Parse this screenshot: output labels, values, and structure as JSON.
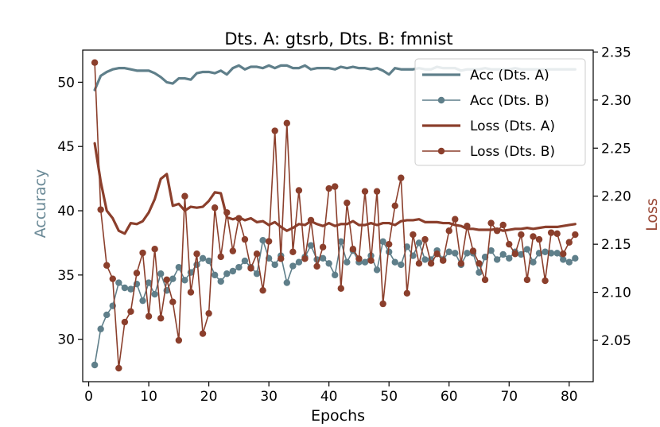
{
  "chart_data": {
    "type": "line",
    "title": "Dts. A: gtsrb, Dts. B: fmnist",
    "xlabel": "Epochs",
    "ylabel_left": "Accuracy",
    "ylabel_right": "Loss",
    "xlim": [
      -1,
      84
    ],
    "ylim_left": [
      26.7,
      52.5
    ],
    "ylim_right": [
      2.007,
      2.352
    ],
    "x_ticks": [
      0,
      10,
      20,
      30,
      40,
      50,
      60,
      70,
      80
    ],
    "y_left_ticks": [
      30,
      35,
      40,
      45,
      50
    ],
    "y_right_ticks": [
      2.05,
      2.1,
      2.15,
      2.2,
      2.25,
      2.3,
      2.35
    ],
    "y_right_tick_labels": [
      "2.05",
      "2.10",
      "2.15",
      "2.20",
      "2.25",
      "2.30",
      "2.35"
    ],
    "legend_position": "top-right",
    "colors": {
      "acc": "#5f7f8a",
      "loss": "#8b3f2c",
      "acc_label": "#6b8a97",
      "loss_label": "#9a4a38"
    },
    "series": [
      {
        "name": "Acc (Dts. A)",
        "axis": "left",
        "style": "line-thick",
        "values": [
          49.4,
          50.5,
          50.8,
          51.0,
          51.1,
          51.1,
          51.0,
          50.9,
          50.9,
          50.9,
          50.7,
          50.4,
          50.0,
          49.9,
          50.3,
          50.3,
          50.2,
          50.7,
          50.8,
          50.8,
          50.7,
          50.9,
          50.6,
          51.1,
          51.3,
          51.0,
          51.2,
          51.2,
          51.1,
          51.3,
          51.1,
          51.3,
          51.3,
          51.1,
          51.1,
          51.3,
          51.0,
          51.1,
          51.1,
          51.1,
          51.0,
          51.2,
          51.1,
          51.2,
          51.1,
          51.1,
          51.0,
          51.1,
          50.9,
          50.6,
          51.1,
          51.0,
          51.0,
          51.0,
          51.1,
          51.0,
          51.0,
          51.2,
          51.1,
          51.1,
          51.1,
          50.9,
          51.0,
          51.0,
          51.0,
          51.1,
          51.0,
          51.0,
          51.0,
          51.0,
          51.1,
          51.0,
          51.0,
          51.0,
          51.0,
          51.0,
          51.0,
          51.0,
          51.0,
          51.0,
          51.0
        ]
      },
      {
        "name": "Acc (Dts. B)",
        "axis": "left",
        "style": "line-marker",
        "values": [
          28.0,
          30.8,
          31.9,
          32.6,
          34.4,
          34.0,
          33.9,
          34.3,
          33.0,
          34.4,
          33.5,
          35.1,
          33.8,
          34.7,
          35.6,
          34.6,
          35.2,
          35.8,
          36.3,
          36.1,
          35.0,
          34.5,
          35.1,
          35.3,
          35.6,
          36.1,
          35.6,
          35.1,
          37.7,
          36.3,
          35.8,
          36.5,
          34.4,
          35.7,
          36.0,
          36.4,
          37.3,
          36.2,
          36.3,
          35.9,
          35.0,
          37.6,
          36.0,
          36.9,
          36.0,
          36.0,
          36.5,
          35.4,
          37.6,
          36.8,
          36.0,
          35.8,
          37.2,
          36.5,
          37.5,
          36.2,
          36.2,
          36.9,
          36.2,
          36.8,
          36.7,
          35.8,
          36.7,
          36.7,
          35.2,
          36.4,
          36.9,
          36.2,
          36.6,
          36.3,
          36.8,
          36.6,
          37.0,
          36.0,
          36.7,
          36.8,
          36.7,
          36.7,
          36.2,
          36.0,
          36.3
        ]
      },
      {
        "name": "Loss (Dts. A)",
        "axis": "right",
        "style": "line-thick",
        "values": [
          2.255,
          2.215,
          2.185,
          2.177,
          2.164,
          2.161,
          2.172,
          2.171,
          2.174,
          2.183,
          2.197,
          2.218,
          2.223,
          2.19,
          2.192,
          2.185,
          2.189,
          2.188,
          2.189,
          2.195,
          2.204,
          2.203,
          2.178,
          2.176,
          2.178,
          2.175,
          2.177,
          2.173,
          2.174,
          2.17,
          2.173,
          2.168,
          2.164,
          2.167,
          2.171,
          2.17,
          2.174,
          2.171,
          2.169,
          2.172,
          2.169,
          2.171,
          2.171,
          2.174,
          2.17,
          2.17,
          2.172,
          2.17,
          2.172,
          2.172,
          2.17,
          2.174,
          2.175,
          2.175,
          2.176,
          2.173,
          2.173,
          2.173,
          2.172,
          2.172,
          2.17,
          2.169,
          2.166,
          2.166,
          2.165,
          2.165,
          2.165,
          2.166,
          2.164,
          2.165,
          2.166,
          2.166,
          2.167,
          2.166,
          2.167,
          2.168,
          2.168,
          2.168,
          2.169,
          2.17,
          2.171
        ]
      },
      {
        "name": "Loss (Dts. B)",
        "axis": "right",
        "style": "line-marker",
        "values": [
          2.339,
          2.186,
          2.128,
          2.114,
          2.021,
          2.069,
          2.08,
          2.12,
          2.141,
          2.075,
          2.145,
          2.073,
          2.113,
          2.09,
          2.05,
          2.2,
          2.1,
          2.14,
          2.057,
          2.078,
          2.188,
          2.137,
          2.183,
          2.143,
          2.177,
          2.155,
          2.125,
          2.14,
          2.102,
          2.153,
          2.268,
          2.135,
          2.276,
          2.142,
          2.206,
          2.135,
          2.175,
          2.127,
          2.147,
          2.208,
          2.21,
          2.104,
          2.193,
          2.145,
          2.135,
          2.205,
          2.133,
          2.205,
          2.088,
          2.15,
          2.19,
          2.219,
          2.099,
          2.16,
          2.13,
          2.155,
          2.13,
          2.14,
          2.133,
          2.164,
          2.176,
          2.13,
          2.169,
          2.143,
          2.13,
          2.113,
          2.172,
          2.164,
          2.17,
          2.15,
          2.14,
          2.16,
          2.113,
          2.158,
          2.155,
          2.112,
          2.162,
          2.161,
          2.14,
          2.152,
          2.16
        ]
      }
    ]
  }
}
